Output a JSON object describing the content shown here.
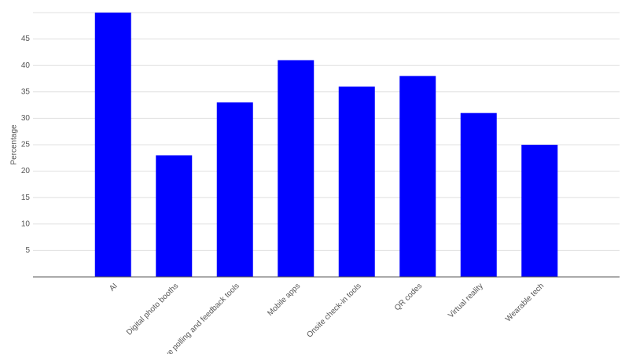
{
  "chart_data": {
    "type": "bar",
    "y_label": "Percentage",
    "categories": [
      "AI",
      "Digital photo booths",
      "Live polling and feedback tools",
      "Mobile apps",
      "Onsite check-in tools",
      "QR codes",
      "Virtual reality",
      "Wearable tech"
    ],
    "values": [
      50,
      23,
      33,
      41,
      36,
      38,
      31,
      25
    ],
    "color": "#0000ff",
    "ylim": [
      0,
      50
    ],
    "yticks": [
      5,
      10,
      15,
      20,
      25,
      30,
      35,
      40,
      45
    ],
    "grid": true
  }
}
